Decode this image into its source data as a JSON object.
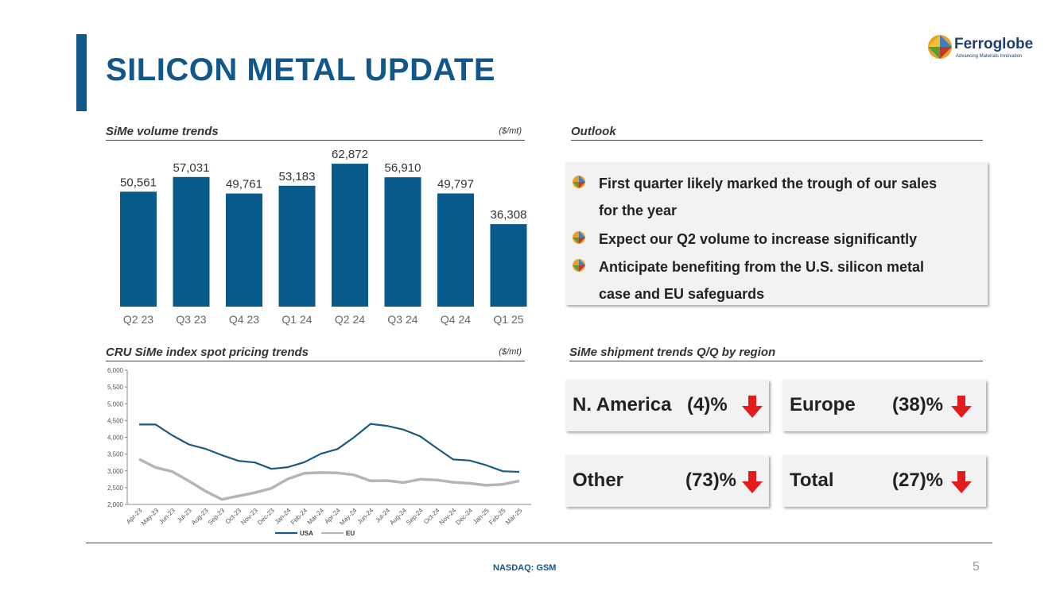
{
  "title": "SILICON METAL UPDATE",
  "logo": {
    "name": "Ferroglobe",
    "tagline": "Advancing Materials Innovation"
  },
  "colors": {
    "brand": "#11578a",
    "bar": "#075a8a",
    "usa": "#1b5a85",
    "eu": "#b5b5b5",
    "down": "#e31b1b"
  },
  "volume": {
    "header": "SiMe volume trends",
    "unit": "($/mt)"
  },
  "pricing": {
    "header": "CRU SiMe index spot pricing trends",
    "unit": "($/mt)"
  },
  "outlook": {
    "header": "Outlook",
    "items": [
      {
        "line1": "First quarter likely marked the trough of our sales",
        "line2": "for the year"
      },
      {
        "line1": "Expect our Q2 volume to increase significantly",
        "line2": ""
      },
      {
        "line1": "Anticipate benefiting from the U.S. silicon metal",
        "line2": "case and EU safeguards"
      }
    ]
  },
  "shipments": {
    "header": "SiMe shipment trends Q/Q by region",
    "regions": [
      {
        "label": "N. America",
        "value": "(4)%",
        "direction": "down"
      },
      {
        "label": "Europe",
        "value": "(38)%",
        "direction": "down"
      },
      {
        "label": "Other",
        "value": "(73)%",
        "direction": "down"
      },
      {
        "label": "Total",
        "value": "(27)%",
        "direction": "down"
      }
    ]
  },
  "chart_data": [
    {
      "type": "bar",
      "categories": [
        "Q2 23",
        "Q3 23",
        "Q4 23",
        "Q1 24",
        "Q2 24",
        "Q3 24",
        "Q4 24",
        "Q1 25"
      ],
      "values": [
        50561,
        57031,
        49761,
        53183,
        62872,
        56910,
        49797,
        36308
      ],
      "value_labels": [
        "50,561",
        "57,031",
        "49,761",
        "53,183",
        "62,872",
        "56,910",
        "49,797",
        "36,308"
      ],
      "title": "SiMe volume trends",
      "unit": "($/mt)",
      "ylim": [
        0,
        65000
      ],
      "grid": false
    },
    {
      "type": "line",
      "categories": [
        "Apr-23",
        "May-23",
        "Jun-23",
        "Jul-23",
        "Aug-23",
        "Sep-23",
        "Oct-23",
        "Nov-23",
        "Dec-23",
        "Jan-24",
        "Feb-24",
        "Mar-24",
        "Apr-24",
        "May-24",
        "Jun-24",
        "Jul-24",
        "Aug-24",
        "Sep-24",
        "Oct-24",
        "Nov-24",
        "Dec-24",
        "Jan-25",
        "Feb-25",
        "Mar-25"
      ],
      "series": [
        {
          "name": "USA",
          "values": [
            4380,
            4380,
            4060,
            3790,
            3660,
            3470,
            3300,
            3250,
            3060,
            3110,
            3260,
            3510,
            3650,
            4000,
            4400,
            4340,
            4230,
            4030,
            3680,
            3340,
            3310,
            3170,
            2990,
            2970
          ]
        },
        {
          "name": "EU",
          "values": [
            3350,
            3100,
            2980,
            2700,
            2400,
            2150,
            2250,
            2350,
            2480,
            2760,
            2930,
            2950,
            2940,
            2880,
            2700,
            2710,
            2650,
            2750,
            2730,
            2660,
            2630,
            2570,
            2600,
            2700
          ]
        }
      ],
      "title": "CRU SiMe index spot pricing trends",
      "unit": "($/mt)",
      "yticks": [
        "2,000",
        "2,500",
        "3,000",
        "3,500",
        "4,000",
        "4,500",
        "5,000",
        "5,500",
        "6,000"
      ],
      "ylim": [
        2000,
        6000
      ],
      "legend": "bottom",
      "grid": false
    }
  ],
  "footer": {
    "text": "NASDAQ: GSM",
    "page": "5"
  }
}
